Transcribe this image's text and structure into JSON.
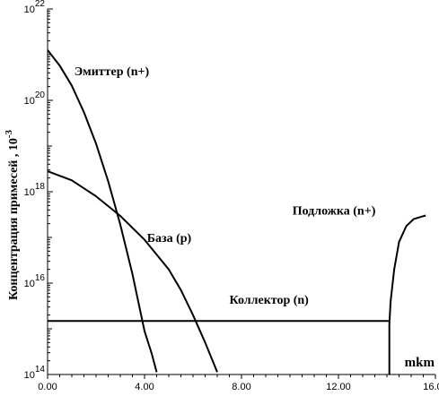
{
  "chart_data": {
    "type": "line",
    "ylabel": "Концентрация примесей , 10",
    "ylabel_exponent": "-3",
    "xunit": "mkm",
    "xlim": [
      0,
      16
    ],
    "ylim": [
      14,
      22
    ],
    "ylog": true,
    "grid": false,
    "x_ticks": [
      "0.00",
      "4.00",
      "8.00",
      "12.00",
      "16.00"
    ],
    "y_ticks": [
      {
        "base": "10",
        "exp": "14",
        "value": 14
      },
      {
        "base": "10",
        "exp": "16",
        "value": 16
      },
      {
        "base": "10",
        "exp": "18",
        "value": 18
      },
      {
        "base": "10",
        "exp": "20",
        "value": 20
      },
      {
        "base": "10",
        "exp": "22",
        "value": 22
      }
    ],
    "annotations": [
      {
        "text": "Эмиттер (n+)",
        "x": 1.1,
        "y": 20.55
      },
      {
        "text": "База (p)",
        "x": 4.1,
        "y": 16.9
      },
      {
        "text": "Коллектор (n)",
        "x": 7.5,
        "y": 15.55
      },
      {
        "text": "Подложка (n+)",
        "x": 10.1,
        "y": 17.5
      }
    ],
    "series": [
      {
        "x": [
          0,
          0.5,
          1,
          1.5,
          2,
          2.5,
          3,
          3.5,
          4,
          4.3,
          4.5
        ],
        "y": [
          21.1,
          20.76,
          20.32,
          19.74,
          19.05,
          18.23,
          17.28,
          16.2,
          14.95,
          14.45,
          14.05
        ]
      },
      {
        "x": [
          0,
          1,
          2,
          3,
          4,
          5,
          5.5,
          6,
          6.5,
          7
        ],
        "y": [
          18.45,
          18.25,
          17.9,
          17.47,
          16.95,
          16.3,
          15.85,
          15.3,
          14.7,
          14.05
        ]
      },
      {
        "x": [
          0,
          14.1
        ],
        "y": [
          15.17,
          15.17
        ]
      },
      {
        "x": [
          14.1,
          14.1,
          14.15,
          14.3,
          14.5,
          14.8,
          15.1,
          15.4,
          15.6
        ],
        "y": [
          14.0,
          15.1,
          15.6,
          16.3,
          16.9,
          17.25,
          17.4,
          17.45,
          17.48
        ]
      }
    ]
  }
}
